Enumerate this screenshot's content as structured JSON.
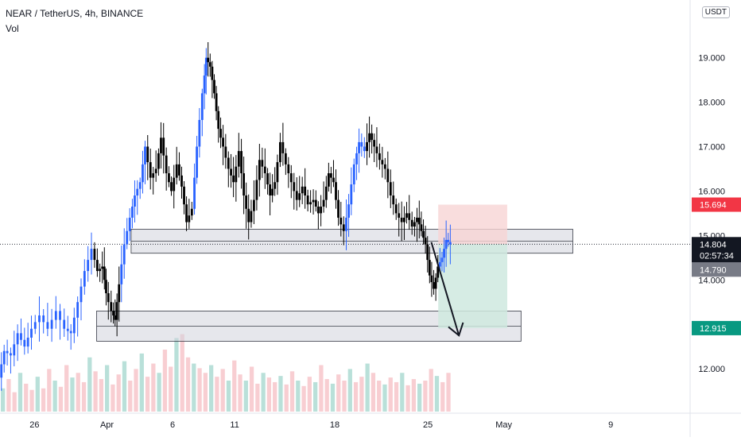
{
  "header": {
    "title": "NEAR / TetherUS, 4h, BINANCE",
    "volume_label": "Vol",
    "unit_badge": "USDT",
    "scale_setting": "2"
  },
  "price_badges": {
    "last_price": "14.804",
    "countdown": "02:57:34",
    "level_1": "15.694",
    "level_2": "14.790",
    "level_3": "12.915"
  },
  "colors": {
    "candle": "#000000",
    "impulse": "#2962ff",
    "zone_fill": "#d1d4dc",
    "stop_fill": "#f7d5d5",
    "target_fill": "#cfe9df",
    "badge_red": "#f23645",
    "badge_gray": "#787b86",
    "badge_green": "#089981",
    "badge_black": "#131722"
  },
  "chart_data": {
    "type": "candlestick",
    "title": "NEAR / TetherUS, 4h, BINANCE",
    "y_axis": {
      "ticks": [
        "12.000",
        "13.000",
        "14.000",
        "15.000",
        "16.000",
        "17.000",
        "18.000",
        "19.000"
      ],
      "range": [
        11.0,
        20.3
      ]
    },
    "x_axis": {
      "ticks": [
        {
          "label": "26",
          "pos": 0.05
        },
        {
          "label": "Apr",
          "pos": 0.155
        },
        {
          "label": "6",
          "pos": 0.25
        },
        {
          "label": "11",
          "pos": 0.34
        },
        {
          "label": "18",
          "pos": 0.485
        },
        {
          "label": "25",
          "pos": 0.62
        },
        {
          "label": "May",
          "pos": 0.73
        },
        {
          "label": "9",
          "pos": 0.885
        }
      ]
    },
    "price_path": [
      [
        0.0,
        11.8
      ],
      [
        0.008,
        12.4
      ],
      [
        0.018,
        12.3
      ],
      [
        0.028,
        12.8
      ],
      [
        0.038,
        12.5
      ],
      [
        0.048,
        12.9
      ],
      [
        0.06,
        13.2
      ],
      [
        0.072,
        12.9
      ],
      [
        0.084,
        13.3
      ],
      [
        0.096,
        12.9
      ],
      [
        0.105,
        12.8
      ],
      [
        0.115,
        13.5
      ],
      [
        0.125,
        14.2
      ],
      [
        0.135,
        14.7
      ],
      [
        0.143,
        14.2
      ],
      [
        0.15,
        14.3
      ],
      [
        0.155,
        13.7
      ],
      [
        0.163,
        13.3
      ],
      [
        0.168,
        13.1
      ],
      [
        0.174,
        13.9
      ],
      [
        0.182,
        14.8
      ],
      [
        0.19,
        15.4
      ],
      [
        0.197,
        15.9
      ],
      [
        0.205,
        16.2
      ],
      [
        0.212,
        17.0
      ],
      [
        0.22,
        16.3
      ],
      [
        0.228,
        16.5
      ],
      [
        0.235,
        17.2
      ],
      [
        0.243,
        16.4
      ],
      [
        0.25,
        16.0
      ],
      [
        0.258,
        16.6
      ],
      [
        0.265,
        16.1
      ],
      [
        0.272,
        15.3
      ],
      [
        0.28,
        15.6
      ],
      [
        0.287,
        17.0
      ],
      [
        0.295,
        18.2
      ],
      [
        0.3,
        19.0
      ],
      [
        0.306,
        18.8
      ],
      [
        0.312,
        18.2
      ],
      [
        0.318,
        17.4
      ],
      [
        0.325,
        17.0
      ],
      [
        0.333,
        16.5
      ],
      [
        0.34,
        16.2
      ],
      [
        0.348,
        16.9
      ],
      [
        0.355,
        15.9
      ],
      [
        0.362,
        15.3
      ],
      [
        0.37,
        15.8
      ],
      [
        0.378,
        16.7
      ],
      [
        0.386,
        16.4
      ],
      [
        0.393,
        15.9
      ],
      [
        0.4,
        16.2
      ],
      [
        0.408,
        17.1
      ],
      [
        0.416,
        16.6
      ],
      [
        0.424,
        16.2
      ],
      [
        0.432,
        15.8
      ],
      [
        0.44,
        16.1
      ],
      [
        0.448,
        15.7
      ],
      [
        0.456,
        15.8
      ],
      [
        0.463,
        15.5
      ],
      [
        0.471,
        15.8
      ],
      [
        0.478,
        16.4
      ],
      [
        0.485,
        16.2
      ],
      [
        0.492,
        15.4
      ],
      [
        0.5,
        15.1
      ],
      [
        0.507,
        15.7
      ],
      [
        0.515,
        16.6
      ],
      [
        0.522,
        17.1
      ],
      [
        0.53,
        16.9
      ],
      [
        0.537,
        17.3
      ],
      [
        0.544,
        17.0
      ],
      [
        0.552,
        16.7
      ],
      [
        0.56,
        16.5
      ],
      [
        0.568,
        15.9
      ],
      [
        0.576,
        15.5
      ],
      [
        0.584,
        15.3
      ],
      [
        0.591,
        15.5
      ],
      [
        0.599,
        15.2
      ],
      [
        0.606,
        15.4
      ],
      [
        0.612,
        15.1
      ],
      [
        0.618,
        14.8
      ],
      [
        0.624,
        14.1
      ],
      [
        0.63,
        13.8
      ],
      [
        0.636,
        14.3
      ],
      [
        0.642,
        14.5
      ],
      [
        0.648,
        14.9
      ],
      [
        0.654,
        14.8
      ]
    ],
    "impulse_ranges": [
      [
        0.0,
        0.135
      ],
      [
        0.174,
        0.212
      ],
      [
        0.28,
        0.3
      ],
      [
        0.5,
        0.53
      ],
      [
        0.636,
        0.654
      ]
    ],
    "zones": [
      {
        "label": "resistance-zone",
        "x0": 0.19,
        "x1": 0.83,
        "y_top": 15.14,
        "y_bottom": 14.6
      },
      {
        "label": "support-zone",
        "x0": 0.14,
        "x1": 0.755,
        "y_top": 13.3,
        "y_bottom": 12.62
      }
    ],
    "short_position": {
      "x0": 0.635,
      "x1": 0.735,
      "entry": 14.804,
      "stop": 15.694,
      "target": 12.915
    },
    "arrow": {
      "from": [
        0.625,
        14.85
      ],
      "to": [
        0.665,
        12.75
      ]
    },
    "last_price": 14.804,
    "volume": [
      0.3,
      0.42,
      0.25,
      0.5,
      0.36,
      0.28,
      0.45,
      0.3,
      0.55,
      0.4,
      0.32,
      0.6,
      0.44,
      0.5,
      0.38,
      0.7,
      0.52,
      0.42,
      0.6,
      0.35,
      0.48,
      0.65,
      0.4,
      0.55,
      0.75,
      0.45,
      0.62,
      0.5,
      0.8,
      0.58,
      0.95,
      1.0,
      0.7,
      0.62,
      0.56,
      0.5,
      0.6,
      0.45,
      0.55,
      0.4,
      0.66,
      0.48,
      0.4,
      0.58,
      0.36,
      0.5,
      0.44,
      0.38,
      0.46,
      0.35,
      0.52,
      0.4,
      0.33,
      0.45,
      0.38,
      0.6,
      0.42,
      0.36,
      0.48,
      0.4,
      0.55,
      0.38,
      0.45,
      0.62,
      0.5,
      0.4,
      0.35,
      0.44,
      0.38,
      0.5,
      0.34,
      0.42,
      0.36,
      0.4,
      0.55,
      0.46,
      0.38,
      0.5
    ]
  }
}
